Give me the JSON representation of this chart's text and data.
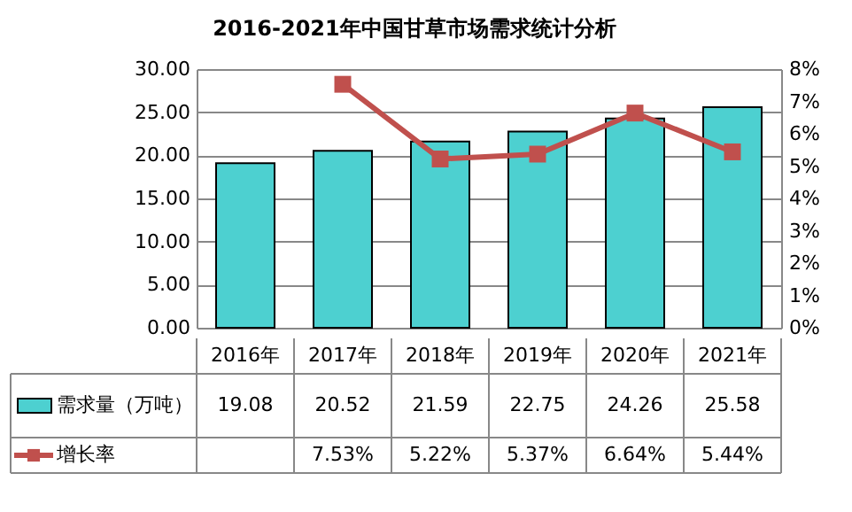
{
  "chart_data": {
    "type": "bar",
    "title": "2016-2021年中国甘草市场需求统计分析",
    "categories": [
      "2016年",
      "2017年",
      "2018年",
      "2019年",
      "2020年",
      "2021年"
    ],
    "series": [
      {
        "name": "需求量（万吨）",
        "color": "#4dd0d0",
        "values": [
          19.08,
          20.52,
          21.59,
          22.75,
          24.26,
          25.58
        ],
        "value_labels": [
          "19.08",
          "20.52",
          "21.59",
          "22.75",
          "24.26",
          "25.58"
        ]
      },
      {
        "name": "增长率",
        "type": "line",
        "axis": "y2",
        "color": "#c0504d",
        "marker": "square",
        "line_style": "solid",
        "values": [
          null,
          7.53,
          5.22,
          5.37,
          6.64,
          5.44
        ],
        "value_labels": [
          null,
          "7.53%",
          "5.22%",
          "5.37%",
          "6.64%",
          "5.44%"
        ]
      }
    ],
    "ylim": [
      0,
      30
    ],
    "yticks": [
      "0.00",
      "5.00",
      "10.00",
      "15.00",
      "20.00",
      "25.00",
      "30.00"
    ],
    "y2lim": [
      0,
      8
    ],
    "y2ticks": [
      {
        "value": 0,
        "label": "0%"
      },
      {
        "value": 1,
        "label": "1%"
      },
      {
        "value": 2,
        "label": "2%"
      },
      {
        "value": 3,
        "label": "3%"
      },
      {
        "value": 4,
        "label": "4%"
      },
      {
        "value": 5,
        "label": "5%"
      },
      {
        "value": 6,
        "label": "6%"
      },
      {
        "value": 7,
        "label": "7%"
      },
      {
        "value": 8,
        "label": "8%"
      }
    ],
    "grid": "y",
    "legend": "bottom left"
  }
}
